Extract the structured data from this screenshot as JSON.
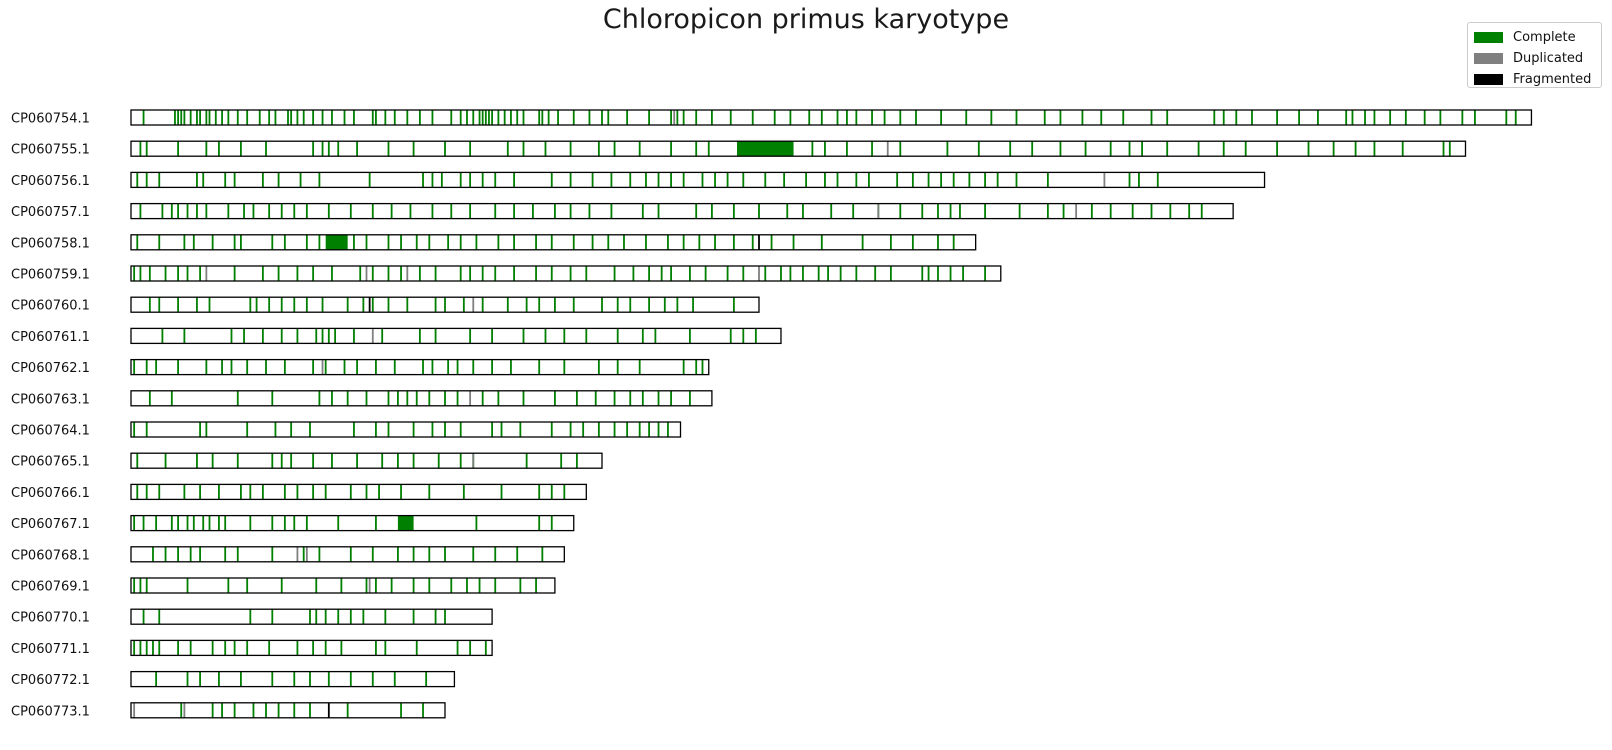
{
  "title": "Chloropicon primus karyotype",
  "legend": [
    {
      "label": "Complete",
      "color": "#008000"
    },
    {
      "label": "Duplicated",
      "color": "#808080"
    },
    {
      "label": "Fragmented",
      "color": "#000000"
    }
  ],
  "chart_data": {
    "type": "karyotype",
    "title": "Chloropicon primus karyotype",
    "legend_placement": "top-right",
    "grid": false,
    "units": "Mb (approximate)",
    "chromosomes": [
      {
        "name": "CP060754.1",
        "length": 4.46,
        "complete": [
          0.04,
          0.14,
          0.15,
          0.16,
          0.17,
          0.19,
          0.21,
          0.22,
          0.24,
          0.25,
          0.27,
          0.29,
          0.31,
          0.34,
          0.37,
          0.41,
          0.44,
          0.46,
          0.5,
          0.51,
          0.53,
          0.55,
          0.58,
          0.61,
          0.64,
          0.68,
          0.71,
          0.77,
          0.78,
          0.81,
          0.84,
          0.88,
          0.92,
          0.96,
          1.02,
          1.05,
          1.07,
          1.09,
          1.11,
          1.12,
          1.13,
          1.14,
          1.15,
          1.17,
          1.19,
          1.21,
          1.23,
          1.25,
          1.3,
          1.31,
          1.33,
          1.36,
          1.41,
          1.46,
          1.5,
          1.52,
          1.58,
          1.65,
          1.72,
          1.74,
          1.76,
          1.8,
          1.85,
          1.91,
          1.98,
          2.05,
          2.1,
          2.16,
          2.2,
          2.25,
          2.28,
          2.31,
          2.36,
          2.4,
          2.45,
          2.5,
          2.58,
          2.66,
          2.74,
          2.82,
          2.91,
          2.96,
          3.03,
          3.09,
          3.16,
          3.25,
          3.3,
          3.45,
          3.48,
          3.52,
          3.57,
          3.65,
          3.72,
          3.78,
          3.87,
          3.89,
          3.93,
          3.96,
          4.01,
          4.06,
          4.12,
          4.17,
          4.24,
          4.28,
          4.38,
          4.41
        ],
        "duplicated": [
          1.73
        ],
        "fragmented": []
      },
      {
        "name": "CP060755.1",
        "length": 4.25,
        "complete": [
          0.03,
          0.05,
          0.15,
          0.24,
          0.28,
          0.35,
          0.43,
          0.58,
          0.61,
          0.63,
          0.66,
          0.72,
          0.82,
          0.9,
          1.0,
          1.08,
          1.2,
          1.25,
          1.32,
          1.4,
          1.49,
          1.54,
          1.62,
          1.72,
          1.8,
          1.84,
          1.99,
          2.02,
          2.09,
          2.17,
          2.21,
          2.28,
          2.36,
          2.45,
          2.6,
          2.7,
          2.8,
          2.87,
          2.96,
          3.04,
          3.12,
          3.18,
          3.22,
          3.3,
          3.4,
          3.48,
          3.55,
          3.65,
          3.75,
          3.83,
          3.9,
          3.96,
          4.05,
          4.18,
          4.2
        ],
        "complete_blocks": [
          [
            1.93,
            2.11
          ]
        ],
        "duplicated": [
          2.41
        ],
        "fragmented": []
      },
      {
        "name": "CP060756.1",
        "length": 3.61,
        "complete": [
          0.02,
          0.05,
          0.09,
          0.21,
          0.23,
          0.3,
          0.33,
          0.42,
          0.47,
          0.54,
          0.6,
          0.76,
          0.93,
          0.96,
          0.99,
          1.05,
          1.08,
          1.12,
          1.16,
          1.22,
          1.34,
          1.4,
          1.47,
          1.53,
          1.59,
          1.64,
          1.68,
          1.72,
          1.76,
          1.82,
          1.86,
          1.9,
          1.95,
          2.02,
          2.08,
          2.15,
          2.21,
          2.25,
          2.31,
          2.35,
          2.44,
          2.49,
          2.54,
          2.58,
          2.62,
          2.67,
          2.72,
          2.76,
          2.82,
          2.92,
          3.18,
          3.21,
          3.27
        ],
        "duplicated": [
          3.1
        ],
        "fragmented": []
      },
      {
        "name": "CP060757.1",
        "length": 3.51,
        "complete": [
          0.03,
          0.1,
          0.13,
          0.15,
          0.18,
          0.21,
          0.24,
          0.31,
          0.36,
          0.39,
          0.44,
          0.48,
          0.52,
          0.56,
          0.63,
          0.7,
          0.77,
          0.83,
          0.89,
          0.96,
          1.02,
          1.08,
          1.16,
          1.22,
          1.28,
          1.35,
          1.4,
          1.46,
          1.53,
          1.63,
          1.68,
          1.8,
          1.85,
          1.92,
          2.0,
          2.09,
          2.14,
          2.23,
          2.3,
          2.38,
          2.45,
          2.52,
          2.57,
          2.61,
          2.64,
          2.72,
          2.83,
          2.92,
          2.97,
          3.06,
          3.12,
          3.19,
          3.25,
          3.31,
          3.37,
          3.41
        ],
        "duplicated": [
          2.38,
          3.01
        ],
        "fragmented": []
      },
      {
        "name": "CP060758.1",
        "length": 2.69,
        "complete": [
          0.02,
          0.09,
          0.17,
          0.2,
          0.26,
          0.33,
          0.35,
          0.45,
          0.49,
          0.56,
          0.6,
          0.66,
          0.71,
          0.75,
          0.82,
          0.86,
          0.91,
          0.95,
          1.01,
          1.05,
          1.1,
          1.17,
          1.22,
          1.29,
          1.34,
          1.41,
          1.47,
          1.52,
          1.57,
          1.64,
          1.71,
          1.76,
          1.81,
          1.86,
          1.92,
          1.98,
          2.04,
          2.11,
          2.2,
          2.33,
          2.42,
          2.49,
          2.57,
          2.62
        ],
        "complete_blocks": [
          [
            0.62,
            0.69
          ]
        ],
        "duplicated": [],
        "fragmented": [
          2.0
        ]
      },
      {
        "name": "CP060759.1",
        "length": 2.77,
        "complete": [
          0.01,
          0.03,
          0.06,
          0.11,
          0.15,
          0.18,
          0.22,
          0.33,
          0.42,
          0.47,
          0.53,
          0.58,
          0.64,
          0.73,
          0.77,
          0.82,
          0.86,
          0.92,
          0.97,
          1.05,
          1.08,
          1.12,
          1.16,
          1.22,
          1.29,
          1.34,
          1.4,
          1.45,
          1.54,
          1.6,
          1.65,
          1.69,
          1.72,
          1.78,
          1.83,
          1.9,
          1.95,
          2.02,
          2.07,
          2.1,
          2.14,
          2.19,
          2.22,
          2.26,
          2.31,
          2.37,
          2.42,
          2.52,
          2.54,
          2.57,
          2.61,
          2.65,
          2.72
        ],
        "duplicated": [
          0.24,
          0.75,
          0.88,
          2.0
        ],
        "fragmented": []
      },
      {
        "name": "CP060760.1",
        "length": 2.0,
        "complete": [
          0.06,
          0.09,
          0.15,
          0.21,
          0.25,
          0.38,
          0.4,
          0.44,
          0.48,
          0.52,
          0.56,
          0.61,
          0.69,
          0.74,
          0.77,
          0.82,
          0.88,
          0.97,
          1.0,
          1.06,
          1.12,
          1.2,
          1.26,
          1.3,
          1.35,
          1.41,
          1.5,
          1.55,
          1.59,
          1.65,
          1.7,
          1.74,
          1.79,
          1.92
        ],
        "duplicated": [
          1.09
        ],
        "fragmented": [
          0.76
        ]
      },
      {
        "name": "CP060761.1",
        "length": 2.07,
        "complete": [
          0.1,
          0.17,
          0.32,
          0.36,
          0.42,
          0.48,
          0.53,
          0.59,
          0.61,
          0.63,
          0.65,
          0.71,
          0.8,
          0.92,
          0.97,
          1.08,
          1.15,
          1.25,
          1.32,
          1.38,
          1.45,
          1.55,
          1.63,
          1.67,
          1.78,
          1.91,
          1.95,
          1.99
        ],
        "duplicated": [
          0.77
        ],
        "fragmented": []
      },
      {
        "name": "CP060762.1",
        "length": 1.84,
        "complete": [
          0.01,
          0.05,
          0.08,
          0.15,
          0.24,
          0.29,
          0.32,
          0.37,
          0.43,
          0.49,
          0.58,
          0.62,
          0.68,
          0.72,
          0.78,
          0.84,
          0.93,
          0.96,
          1.01,
          1.04,
          1.09,
          1.15,
          1.21,
          1.3,
          1.38,
          1.49,
          1.55,
          1.62,
          1.76,
          1.8,
          1.82
        ],
        "duplicated": [
          0.61
        ],
        "fragmented": []
      },
      {
        "name": "CP060763.1",
        "length": 1.85,
        "complete": [
          0.06,
          0.13,
          0.34,
          0.45,
          0.6,
          0.64,
          0.69,
          0.75,
          0.82,
          0.85,
          0.88,
          0.91,
          0.95,
          1.0,
          1.04,
          1.12,
          1.17,
          1.25,
          1.35,
          1.42,
          1.48,
          1.54,
          1.59,
          1.63,
          1.68,
          1.72,
          1.78
        ],
        "duplicated": [
          1.08
        ],
        "fragmented": []
      },
      {
        "name": "CP060764.1",
        "length": 1.75,
        "complete": [
          0.01,
          0.05,
          0.22,
          0.24,
          0.37,
          0.46,
          0.51,
          0.57,
          0.71,
          0.78,
          0.82,
          0.9,
          0.96,
          1.0,
          1.05,
          1.15,
          1.18,
          1.24,
          1.34,
          1.4,
          1.44,
          1.49,
          1.54,
          1.58,
          1.62,
          1.65,
          1.68,
          1.71
        ],
        "duplicated": [],
        "fragmented": []
      },
      {
        "name": "CP060765.1",
        "length": 1.5,
        "complete": [
          0.02,
          0.11,
          0.21,
          0.26,
          0.34,
          0.45,
          0.48,
          0.51,
          0.58,
          0.64,
          0.72,
          0.8,
          0.85,
          0.9,
          0.98,
          1.05,
          1.09,
          1.26,
          1.37,
          1.42
        ],
        "duplicated": [
          1.09
        ],
        "fragmented": []
      },
      {
        "name": "CP060766.1",
        "length": 1.45,
        "complete": [
          0.02,
          0.05,
          0.09,
          0.17,
          0.22,
          0.28,
          0.35,
          0.38,
          0.42,
          0.49,
          0.53,
          0.58,
          0.62,
          0.7,
          0.75,
          0.79,
          0.86,
          0.95,
          1.06,
          1.18,
          1.3,
          1.34,
          1.38
        ],
        "duplicated": [],
        "fragmented": []
      },
      {
        "name": "CP060767.1",
        "length": 1.41,
        "complete": [
          0.01,
          0.04,
          0.08,
          0.13,
          0.15,
          0.18,
          0.2,
          0.23,
          0.25,
          0.28,
          0.3,
          0.38,
          0.45,
          0.49,
          0.52,
          0.56,
          0.66,
          0.78,
          1.1,
          1.3,
          1.34
        ],
        "complete_blocks": [
          [
            0.85,
            0.9
          ]
        ],
        "duplicated": [],
        "fragmented": []
      },
      {
        "name": "CP060768.1",
        "length": 1.38,
        "complete": [
          0.07,
          0.11,
          0.15,
          0.19,
          0.22,
          0.3,
          0.34,
          0.45,
          0.55,
          0.6,
          0.7,
          0.77,
          0.85,
          0.9,
          0.95,
          1.0,
          1.09,
          1.16,
          1.23,
          1.31
        ],
        "duplicated": [
          0.53,
          0.56
        ],
        "fragmented": []
      },
      {
        "name": "CP060769.1",
        "length": 1.35,
        "complete": [
          0.01,
          0.03,
          0.05,
          0.18,
          0.31,
          0.37,
          0.48,
          0.59,
          0.67,
          0.75,
          0.78,
          0.83,
          0.9,
          0.95,
          1.02,
          1.07,
          1.11,
          1.16,
          1.24,
          1.29
        ],
        "duplicated": [
          0.76
        ],
        "fragmented": []
      },
      {
        "name": "CP060770.1",
        "length": 1.15,
        "complete": [
          0.04,
          0.09,
          0.38,
          0.45,
          0.57,
          0.59,
          0.62,
          0.66,
          0.7,
          0.74,
          0.81,
          0.9,
          0.97,
          1.0
        ],
        "duplicated": [],
        "fragmented": []
      },
      {
        "name": "CP060771.1",
        "length": 1.15,
        "complete": [
          0.01,
          0.03,
          0.05,
          0.07,
          0.09,
          0.15,
          0.19,
          0.26,
          0.3,
          0.33,
          0.37,
          0.44,
          0.53,
          0.58,
          0.62,
          0.67,
          0.78,
          0.81,
          0.91,
          1.04,
          1.08,
          1.13
        ],
        "duplicated": [],
        "fragmented": []
      },
      {
        "name": "CP060772.1",
        "length": 1.03,
        "complete": [
          0.08,
          0.18,
          0.22,
          0.28,
          0.35,
          0.45,
          0.52,
          0.57,
          0.63,
          0.7,
          0.77,
          0.84,
          0.94
        ],
        "duplicated": [],
        "fragmented": []
      },
      {
        "name": "CP060773.1",
        "length": 1.0,
        "complete": [
          0.16,
          0.26,
          0.29,
          0.33,
          0.39,
          0.43,
          0.47,
          0.52,
          0.57,
          0.69,
          0.86,
          0.93
        ],
        "duplicated": [
          0.01,
          0.17
        ],
        "fragmented": [
          0.63
        ]
      }
    ]
  }
}
